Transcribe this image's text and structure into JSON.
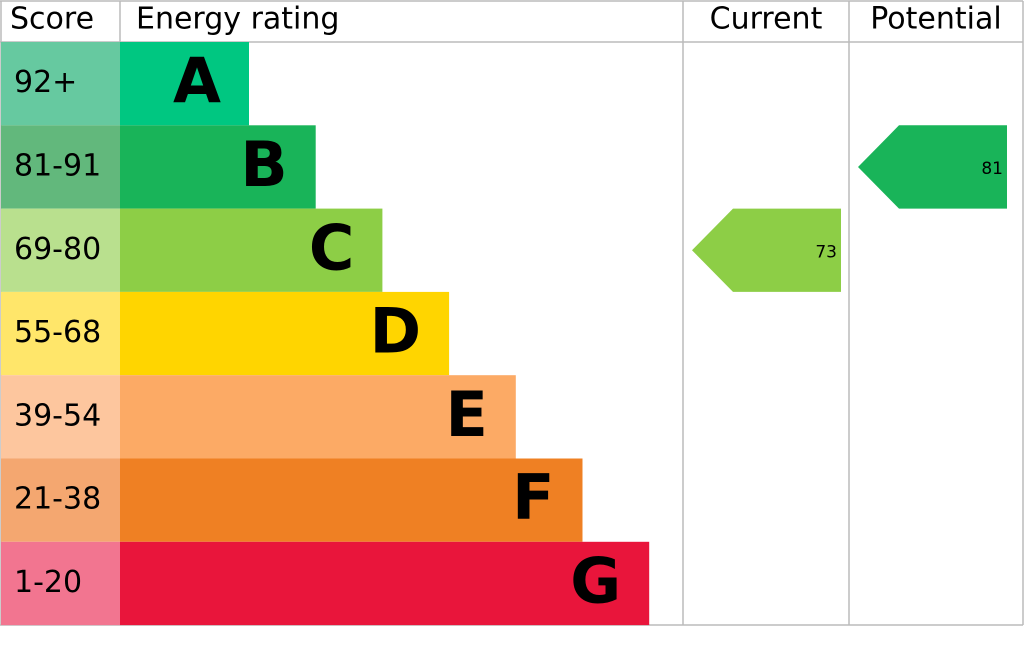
{
  "header": {
    "score": "Score",
    "rating": "Energy rating",
    "current": "Current",
    "potential": "Potential"
  },
  "bands": [
    {
      "score": "92+",
      "letter": "A",
      "color": "#00c781",
      "score_color": "#66c9a0"
    },
    {
      "score": "81-91",
      "letter": "B",
      "color": "#19b459",
      "score_color": "#62b87c"
    },
    {
      "score": "69-80",
      "letter": "C",
      "color": "#8dce46",
      "score_color": "#b9e08e"
    },
    {
      "score": "55-68",
      "letter": "D",
      "color": "#ffd500",
      "score_color": "#ffe66a"
    },
    {
      "score": "39-54",
      "letter": "E",
      "color": "#fcaa65",
      "score_color": "#fdc69e"
    },
    {
      "score": "21-38",
      "letter": "F",
      "color": "#ef8023",
      "score_color": "#f4a770"
    },
    {
      "score": "1-20",
      "letter": "G",
      "color": "#e9153b",
      "score_color": "#f27590"
    }
  ],
  "current": 73,
  "potential": 81
}
